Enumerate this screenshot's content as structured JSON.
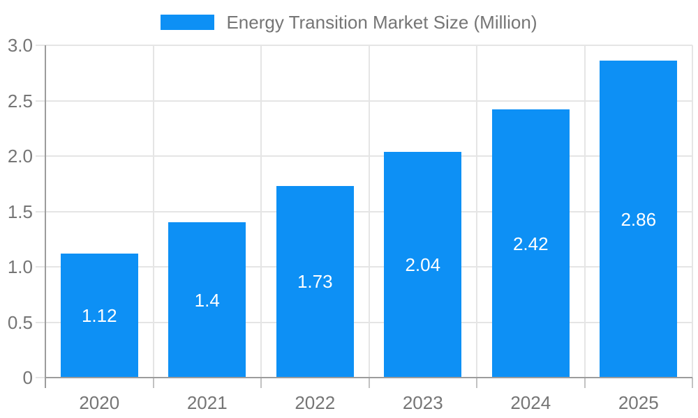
{
  "chart_data": {
    "type": "bar",
    "title": "",
    "legend": {
      "label": "Energy Transition Market Size (Million)",
      "position": "top-center"
    },
    "categories": [
      "2020",
      "2021",
      "2022",
      "2023",
      "2024",
      "2025"
    ],
    "series": [
      {
        "name": "Energy Transition Market Size (Million)",
        "values": [
          1.12,
          1.4,
          1.73,
          2.04,
          2.42,
          2.86
        ]
      }
    ],
    "value_labels": [
      "1.12",
      "1.4",
      "1.73",
      "2.04",
      "2.42",
      "2.86"
    ],
    "value_label_position": "inside-center",
    "xlabel": "",
    "ylabel": "",
    "ylim": [
      0,
      3.0
    ],
    "y_ticks": [
      0,
      0.5,
      1.0,
      1.5,
      2.0,
      2.5,
      3.0
    ],
    "y_tick_labels": [
      "0",
      "0.5",
      "1.0",
      "1.5",
      "2.0",
      "2.5",
      "3.0"
    ],
    "grid": true,
    "colors": {
      "bar": "#0D90F5",
      "axis_text": "#757575",
      "value_label_text": "#ffffff",
      "grid_line": "#e5e5e5",
      "axis_line": "#9c9c9c",
      "x_tick_line": "#c2c2c2",
      "background": "#ffffff"
    }
  }
}
